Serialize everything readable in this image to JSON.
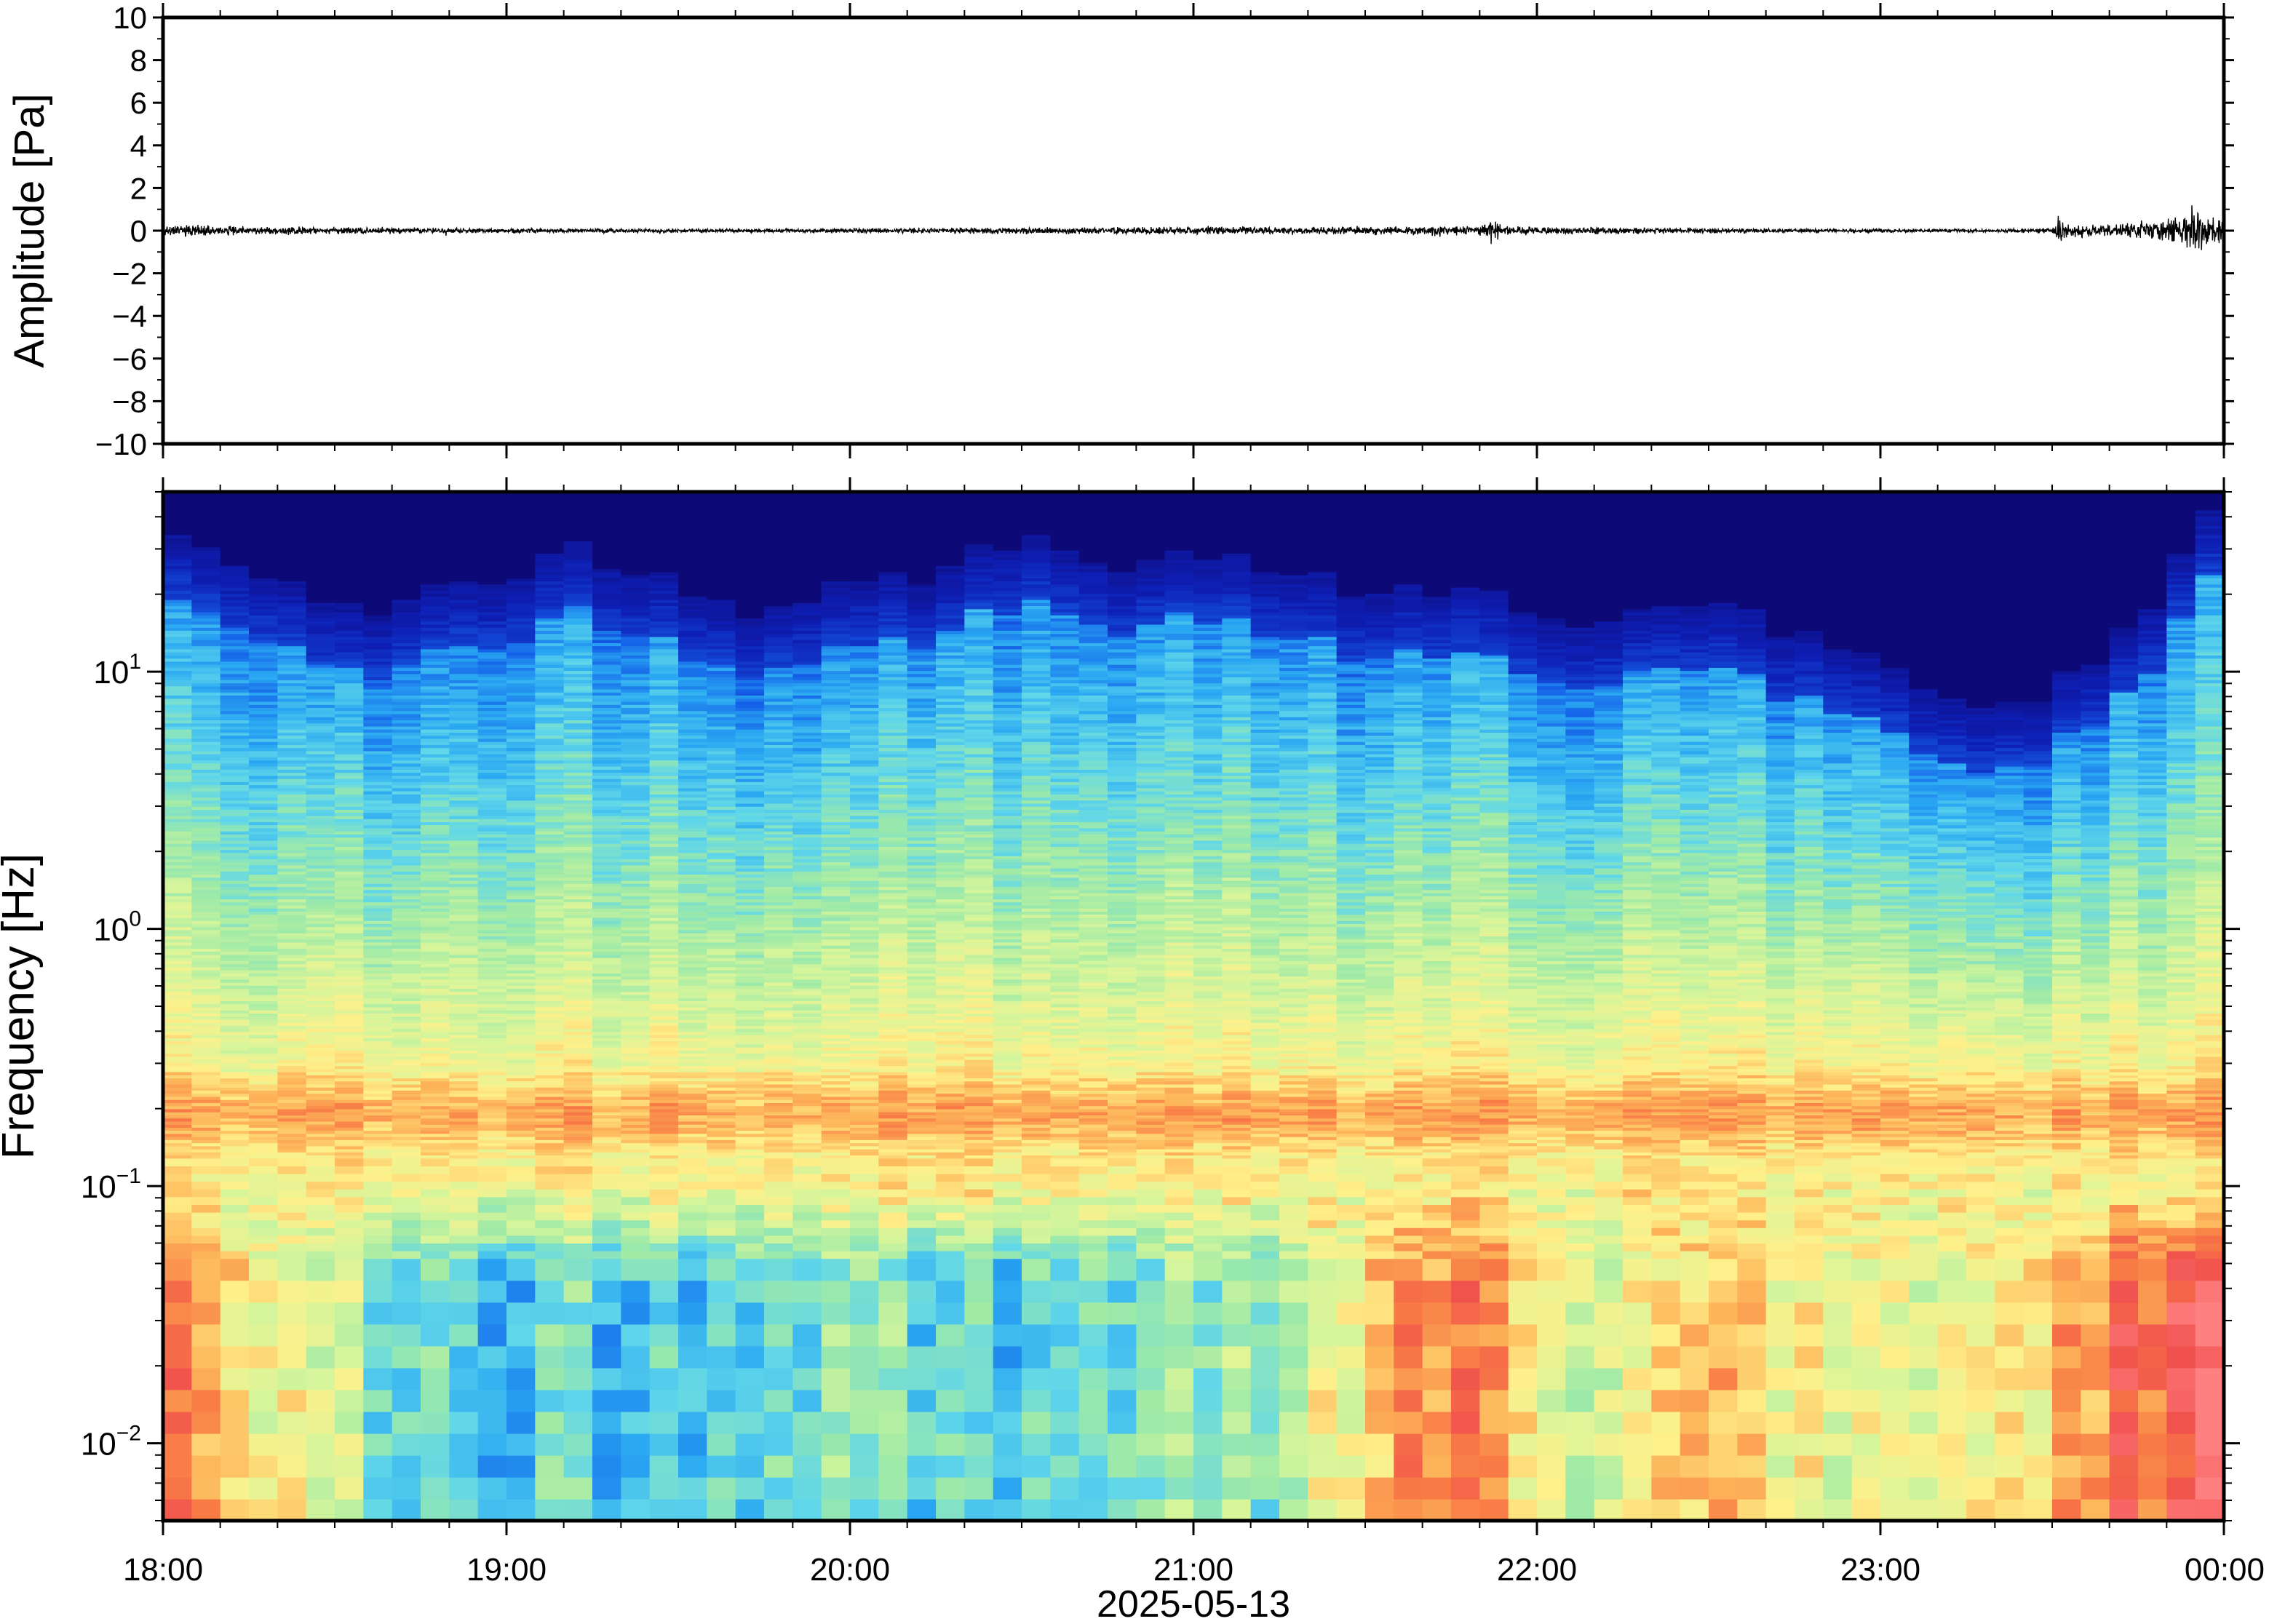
{
  "figure": {
    "date_label": "2025-05-13",
    "background_color": "#ffffff",
    "axis_color": "#000000"
  },
  "chart_data": [
    {
      "type": "line",
      "panel": "waveform",
      "title": "",
      "xlabel": "",
      "ylabel": "Amplitude [Pa]",
      "ylim": [
        -10,
        10
      ],
      "y_ticks": [
        10,
        8,
        6,
        4,
        2,
        0,
        -2,
        -4,
        -6,
        -8,
        -10
      ],
      "y_tick_labels": [
        "10",
        "8",
        "6",
        "4",
        "2",
        "0",
        "−2",
        "−4",
        "−6",
        "−8",
        "−10"
      ],
      "x_range": [
        "18:00",
        "00:00"
      ],
      "grid": false,
      "line_color": "#000000",
      "envelope": {
        "x_minutes": [
          0,
          10,
          20,
          30,
          60,
          90,
          120,
          150,
          180,
          200,
          210,
          220,
          230,
          232,
          234,
          240,
          270,
          300,
          320,
          330,
          331,
          333,
          340,
          345,
          350,
          355,
          357,
          360
        ],
        "amplitude_pa": [
          0.35,
          0.3,
          0.25,
          0.2,
          0.15,
          0.12,
          0.15,
          0.2,
          0.25,
          0.22,
          0.25,
          0.3,
          0.3,
          0.75,
          0.3,
          0.25,
          0.15,
          0.12,
          0.1,
          0.15,
          1.0,
          0.45,
          0.4,
          0.5,
          0.7,
          1.4,
          1.0,
          0.8
        ]
      }
    },
    {
      "type": "heatmap",
      "panel": "spectrogram",
      "title": "",
      "xlabel": "2025-05-13",
      "ylabel": "Frequency [Hz]",
      "y_scale": "log",
      "ylim": [
        0.005,
        50
      ],
      "y_ticks": [
        0.01,
        0.1,
        1,
        10
      ],
      "y_tick_labels": [
        {
          "base": "10",
          "exp": "−2"
        },
        {
          "base": "10",
          "exp": "−1"
        },
        {
          "base": "10",
          "exp": "0"
        },
        {
          "base": "10",
          "exp": "1"
        }
      ],
      "x_ticks": [
        "18:00",
        "19:00",
        "20:00",
        "21:00",
        "22:00",
        "23:00",
        "00:00"
      ],
      "x_minutes_ticks": [
        0,
        60,
        120,
        180,
        240,
        300,
        360
      ],
      "grid": false,
      "colormap": [
        "#0d0a78",
        "#0e1fb5",
        "#1560e8",
        "#2aa8f2",
        "#5fd6ea",
        "#9eeaa8",
        "#d6f59b",
        "#fff08a",
        "#fdb55a",
        "#f87a45",
        "#f0504e",
        "#ff8080"
      ],
      "time_minutes": [
        0,
        15,
        30,
        45,
        60,
        75,
        90,
        105,
        120,
        135,
        150,
        165,
        180,
        195,
        210,
        225,
        240,
        255,
        270,
        285,
        300,
        315,
        330,
        345,
        360
      ],
      "upper_cutoff_hz": [
        18,
        16,
        9,
        12,
        14,
        17,
        12,
        10,
        13,
        12,
        20,
        14,
        16,
        14,
        12,
        11,
        10,
        9,
        10,
        8,
        6,
        4,
        5,
        8,
        24
      ],
      "low_band_intensity": [
        0.78,
        0.7,
        0.5,
        0.42,
        0.35,
        0.38,
        0.34,
        0.42,
        0.45,
        0.32,
        0.36,
        0.4,
        0.42,
        0.44,
        0.72,
        0.78,
        0.65,
        0.55,
        0.7,
        0.6,
        0.55,
        0.6,
        0.72,
        0.85,
        0.95
      ]
    }
  ]
}
